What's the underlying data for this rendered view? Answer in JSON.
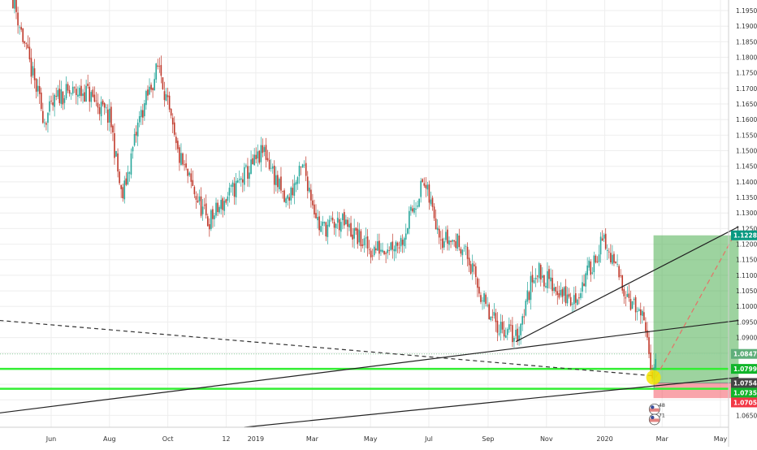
{
  "chart_data": {
    "type": "candlestick",
    "instrument_note": "",
    "ylim": [
      1.0612,
      1.1984
    ],
    "y_ticks": [
      "1.19500",
      "1.19000",
      "1.18500",
      "1.18000",
      "1.17500",
      "1.17000",
      "1.16500",
      "1.16000",
      "1.15500",
      "1.15000",
      "1.14500",
      "1.14000",
      "1.13500",
      "1.13000",
      "1.12500",
      "1.12000",
      "1.11500",
      "1.11000",
      "1.10500",
      "1.10000",
      "1.09500",
      "1.09000",
      "1.08500",
      "1.08000",
      "1.07500",
      "1.07000",
      "1.06500"
    ],
    "x_ticks": [
      "Jun",
      "Aug",
      "Oct",
      "12",
      "2019",
      "Mar",
      "May",
      "Jul",
      "Sep",
      "Nov",
      "2020",
      "Mar",
      "May"
    ],
    "price_labels": [
      {
        "text": "1.12283",
        "value": 1.12283,
        "color": "#089981"
      },
      {
        "text": "1.08475",
        "value": 1.08475,
        "color": "#5fae7a"
      },
      {
        "text": "1.07995",
        "value": 1.07995,
        "color": "#11b52a"
      },
      {
        "text": "1.07543",
        "value": 1.07543,
        "color": "#444444"
      },
      {
        "text": "1.07355",
        "value": 1.07355,
        "color": "#11b52a"
      },
      {
        "text": "1.07056",
        "value": 1.07056,
        "color": "#f23645"
      }
    ],
    "waypoints": [
      {
        "date": "2018-04-22",
        "price": 1.199
      },
      {
        "date": "2018-05-05",
        "price": 1.183
      },
      {
        "date": "2018-05-25",
        "price": 1.16
      },
      {
        "date": "2018-06-10",
        "price": 1.168
      },
      {
        "date": "2018-07-08",
        "price": 1.169
      },
      {
        "date": "2018-08-02",
        "price": 1.16
      },
      {
        "date": "2018-08-14",
        "price": 1.134
      },
      {
        "date": "2018-09-01",
        "price": 1.16
      },
      {
        "date": "2018-09-22",
        "price": 1.178
      },
      {
        "date": "2018-10-10",
        "price": 1.15
      },
      {
        "date": "2018-10-31",
        "price": 1.135
      },
      {
        "date": "2018-11-12",
        "price": 1.127
      },
      {
        "date": "2018-12-10",
        "price": 1.138
      },
      {
        "date": "2019-01-10",
        "price": 1.15
      },
      {
        "date": "2019-02-01",
        "price": 1.133
      },
      {
        "date": "2019-02-20",
        "price": 1.145
      },
      {
        "date": "2019-03-09",
        "price": 1.125
      },
      {
        "date": "2019-04-01",
        "price": 1.127
      },
      {
        "date": "2019-05-01",
        "price": 1.118
      },
      {
        "date": "2019-06-02",
        "price": 1.121
      },
      {
        "date": "2019-06-25",
        "price": 1.14
      },
      {
        "date": "2019-07-15",
        "price": 1.122
      },
      {
        "date": "2019-08-05",
        "price": 1.12
      },
      {
        "date": "2019-09-03",
        "price": 1.096
      },
      {
        "date": "2019-10-01",
        "price": 1.09
      },
      {
        "date": "2019-10-20",
        "price": 1.112
      },
      {
        "date": "2019-11-29",
        "price": 1.101
      },
      {
        "date": "2019-12-30",
        "price": 1.121
      },
      {
        "date": "2020-01-28",
        "price": 1.102
      },
      {
        "date": "2020-02-10",
        "price": 1.095
      },
      {
        "date": "2020-02-20",
        "price": 1.079
      },
      {
        "date": "2020-02-24",
        "price": 1.085
      }
    ],
    "horizontal_levels": [
      {
        "value": 1.07995,
        "color": "#33ee33"
      },
      {
        "value": 1.07355,
        "color": "#33ee33"
      }
    ],
    "trend_lines": [
      {
        "from": {
          "date": "2018-04-08",
          "price": 1.0955
        },
        "to": {
          "date": "2020-02-21",
          "price": 1.0777
        },
        "style": "dashed",
        "color": "#333333"
      },
      {
        "from": {
          "date": "2018-04-08",
          "price": 1.0658
        },
        "to": {
          "date": "2020-05-20",
          "price": 1.0955
        },
        "style": "solid",
        "color": "#222222"
      },
      {
        "from": {
          "date": "2019-09-30",
          "price": 1.0887
        },
        "to": {
          "date": "2020-05-20",
          "price": 1.1256
        },
        "style": "solid",
        "color": "#222222"
      },
      {
        "from": {
          "date": "2018-12-20",
          "price": 1.0612
        },
        "to": {
          "date": "2020-05-20",
          "price": 1.0772
        },
        "style": "solid",
        "color": "#222222"
      }
    ],
    "position_tool": {
      "entry": 1.07543,
      "target": 1.12283,
      "stop": 1.07056,
      "start_date": "2020-02-21",
      "end_date": "2020-05-20",
      "profit_color": "#4caf50",
      "loss_color": "#f23645"
    },
    "projection": {
      "from": {
        "date": "2020-02-24",
        "price": 1.0775
      },
      "to": {
        "date": "2020-05-15",
        "price": 1.1227
      },
      "color": "#e0786a"
    },
    "highlight": {
      "date": "2020-02-21",
      "price": 1.0772,
      "color": "#f5e400"
    },
    "dividend_markers": [
      {
        "date": "2020-02-22",
        "price": 1.067,
        "label": "4",
        "sub": "8"
      },
      {
        "date": "2020-02-22",
        "price": 1.0637,
        "label": "7",
        "sub": "1"
      }
    ],
    "grid": true,
    "colors": {
      "up_candle": "#26a69a",
      "down_candle": "#c0392b",
      "grid": "#eeeeee",
      "reference_line": "#8fd4a0"
    }
  }
}
